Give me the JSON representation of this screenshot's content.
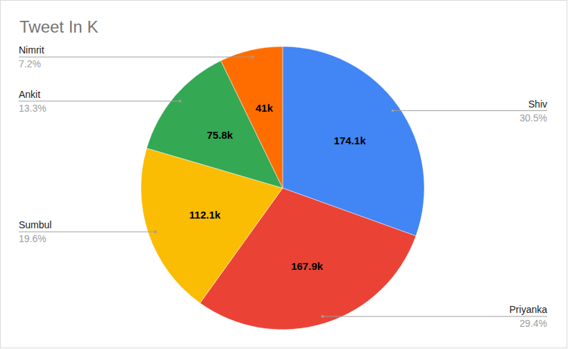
{
  "chart_data": {
    "type": "pie",
    "title": "Tweet In K",
    "categories": [
      "Shiv",
      "Priyanka",
      "Sumbul",
      "Ankit",
      "Nimrit"
    ],
    "values": [
      174.1,
      167.9,
      112.1,
      75.8,
      41
    ],
    "value_labels": [
      "174.1k",
      "167.9k",
      "112.1k",
      "75.8k",
      "41k"
    ],
    "percent_labels": [
      "30.5%",
      "29.4%",
      "19.6%",
      "13.3%",
      "7.2%"
    ],
    "colors": [
      "#4285f4",
      "#ea4335",
      "#fbbc04",
      "#34a853",
      "#ff6d01"
    ],
    "data_labels": true
  }
}
